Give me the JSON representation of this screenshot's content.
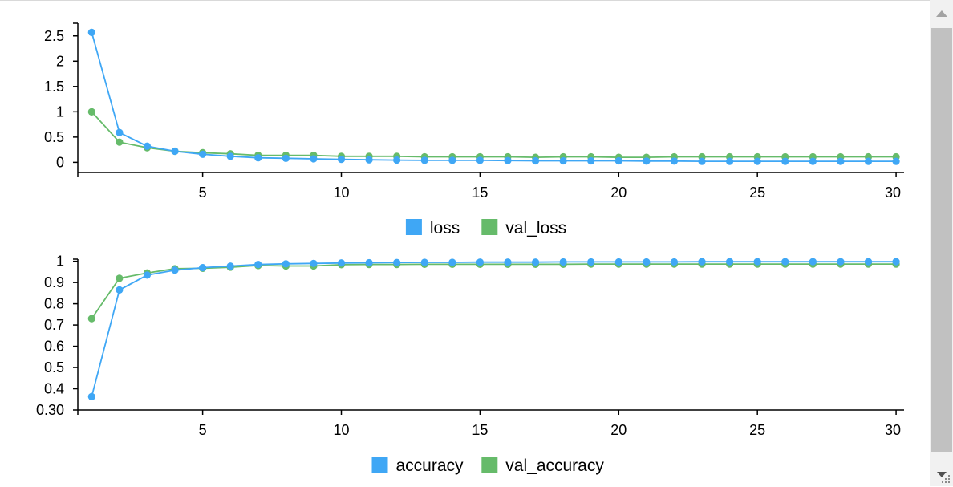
{
  "chart_data": [
    {
      "type": "line",
      "x": [
        1,
        2,
        3,
        4,
        5,
        6,
        7,
        8,
        9,
        10,
        11,
        12,
        13,
        14,
        15,
        16,
        17,
        18,
        19,
        20,
        21,
        22,
        23,
        24,
        25,
        26,
        27,
        28,
        29,
        30
      ],
      "xlim": [
        0.5,
        30.2
      ],
      "xticks": [
        5,
        10,
        15,
        20,
        25,
        30
      ],
      "xtick_labels": [
        "5",
        "10",
        "15",
        "20",
        "25",
        "30"
      ],
      "ylim": [
        -0.2,
        2.75
      ],
      "yticks": [
        0,
        0.5,
        1,
        1.5,
        2,
        2.5
      ],
      "ytick_labels": [
        "0",
        "0.5",
        "1",
        "1.5",
        "2",
        "2.5"
      ],
      "grid": false,
      "legend_position": "bottom-center",
      "series": [
        {
          "name": "loss",
          "color": "#3fa7f5",
          "values": [
            2.57,
            0.59,
            0.32,
            0.22,
            0.16,
            0.12,
            0.09,
            0.08,
            0.07,
            0.06,
            0.05,
            0.045,
            0.04,
            0.04,
            0.04,
            0.035,
            0.03,
            0.03,
            0.03,
            0.03,
            0.025,
            0.025,
            0.02,
            0.02,
            0.02,
            0.02,
            0.02,
            0.02,
            0.02,
            0.02
          ]
        },
        {
          "name": "val_loss",
          "color": "#66bb6a",
          "values": [
            1.0,
            0.4,
            0.29,
            0.22,
            0.19,
            0.17,
            0.14,
            0.14,
            0.14,
            0.12,
            0.12,
            0.12,
            0.11,
            0.11,
            0.11,
            0.11,
            0.1,
            0.11,
            0.11,
            0.1,
            0.1,
            0.11,
            0.11,
            0.11,
            0.11,
            0.11,
            0.11,
            0.11,
            0.11,
            0.11
          ]
        }
      ]
    },
    {
      "type": "line",
      "x": [
        1,
        2,
        3,
        4,
        5,
        6,
        7,
        8,
        9,
        10,
        11,
        12,
        13,
        14,
        15,
        16,
        17,
        18,
        19,
        20,
        21,
        22,
        23,
        24,
        25,
        26,
        27,
        28,
        29,
        30
      ],
      "xlim": [
        0.5,
        30.2
      ],
      "xticks": [
        5,
        10,
        15,
        20,
        25,
        30
      ],
      "xtick_labels": [
        "5",
        "10",
        "15",
        "20",
        "25",
        "30"
      ],
      "ylim": [
        0.3,
        1.01
      ],
      "yticks": [
        0.3,
        0.4,
        0.5,
        0.6,
        0.7,
        0.8,
        0.9,
        1
      ],
      "ytick_labels": [
        "0.30",
        "0.4",
        "0.5",
        "0.6",
        "0.7",
        "0.8",
        "0.9",
        "1"
      ],
      "grid": false,
      "legend_position": "bottom-center",
      "series": [
        {
          "name": "accuracy",
          "color": "#3fa7f5",
          "values": [
            0.363,
            0.865,
            0.935,
            0.958,
            0.97,
            0.977,
            0.985,
            0.988,
            0.99,
            0.992,
            0.993,
            0.994,
            0.995,
            0.995,
            0.996,
            0.996,
            0.996,
            0.997,
            0.997,
            0.997,
            0.997,
            0.997,
            0.998,
            0.998,
            0.998,
            0.998,
            0.998,
            0.998,
            0.998,
            0.998
          ]
        },
        {
          "name": "val_accuracy",
          "color": "#66bb6a",
          "values": [
            0.73,
            0.92,
            0.945,
            0.965,
            0.967,
            0.972,
            0.98,
            0.978,
            0.978,
            0.984,
            0.985,
            0.985,
            0.986,
            0.986,
            0.986,
            0.986,
            0.986,
            0.986,
            0.987,
            0.987,
            0.987,
            0.987,
            0.987,
            0.987,
            0.987,
            0.987,
            0.987,
            0.987,
            0.987,
            0.987
          ]
        }
      ]
    }
  ],
  "page": {
    "scrollbar": {
      "up_icon": "triangle-up-icon",
      "down_icon": "triangle-down-icon",
      "grip_icon": "resize-grip-icon"
    }
  }
}
